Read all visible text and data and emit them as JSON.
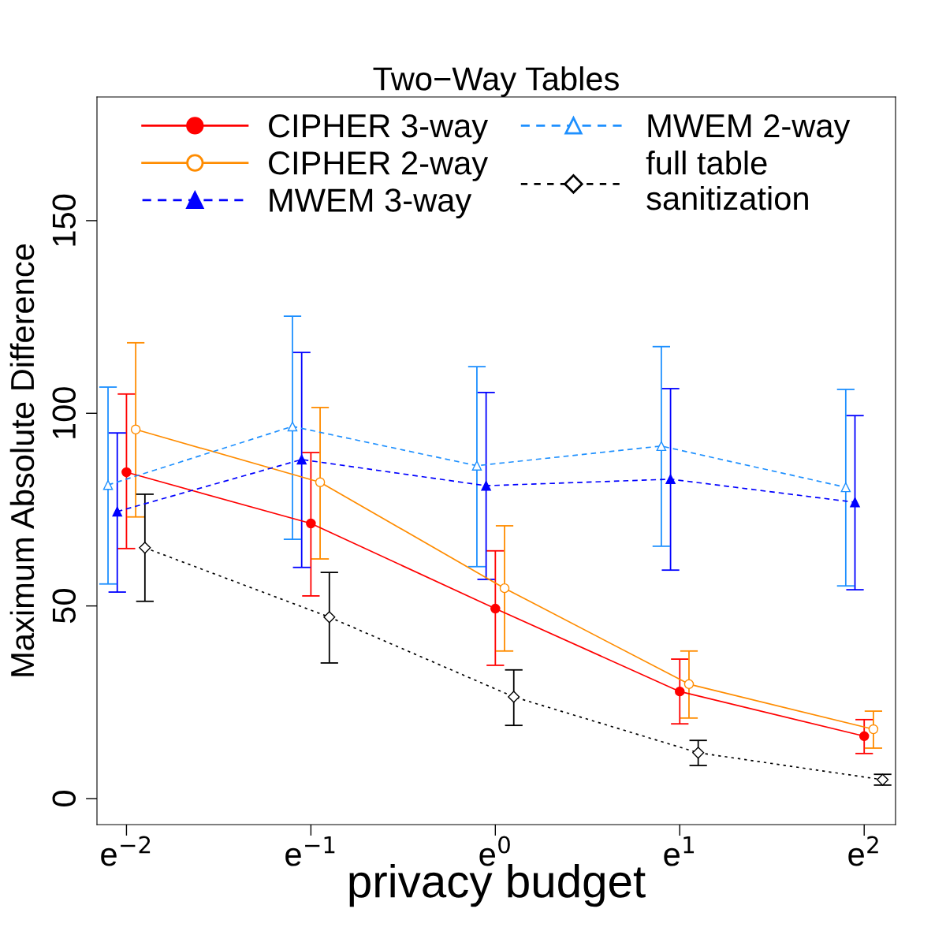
{
  "chart_data": {
    "type": "line",
    "title": "Two−Way Tables",
    "xlabel": "privacy budget",
    "ylabel": "Maximum Absolute Difference",
    "xlim": [
      -2.16,
      2.17
    ],
    "ylim": [
      -6.75,
      182.1
    ],
    "xticks": [
      {
        "value": -2,
        "label": "e$^{−2}$"
      },
      {
        "value": -1,
        "label": "e$^{−1}$"
      },
      {
        "value": 0,
        "label": "e$^{0}$"
      },
      {
        "value": 1,
        "label": "e$^{1}$"
      },
      {
        "value": 2,
        "label": "e$^{2}$"
      }
    ],
    "yticks": [
      0,
      50,
      100,
      150
    ],
    "grid": false,
    "legend": "top",
    "series": [
      {
        "name": "CIPHER 3-way",
        "color": "#ff0000",
        "marker": "circle",
        "line_style": "solid",
        "x": [
          -2,
          -1,
          0,
          1,
          2
        ],
        "values": [
          84.7,
          71.4,
          49.3,
          27.8,
          16.2
        ],
        "errors": [
          [
            64.9,
            105
          ],
          [
            52.6,
            89.8
          ],
          [
            34.6,
            64.3
          ],
          [
            19.4,
            36.2
          ],
          [
            11.7,
            20.5
          ]
        ]
      },
      {
        "name": "CIPHER 2-way",
        "color": "#ff8c00",
        "marker": "circle",
        "line_style": "solid",
        "x": [
          -1.95,
          -0.95,
          0.05,
          1.05,
          2.05
        ],
        "values": [
          95.8,
          82.1,
          54.6,
          29.7,
          18.0
        ],
        "errors": [
          [
            73.1,
            118.3
          ],
          [
            62.2,
            101.5
          ],
          [
            38.3,
            70.8
          ],
          [
            20.9,
            38.3
          ],
          [
            13.1,
            22.7
          ]
        ]
      },
      {
        "name": "MWEM 3-way",
        "color": "#0000ff",
        "marker": "triangle",
        "line_style": "dashed",
        "x": [
          -2.05,
          -1.05,
          -0.05,
          0.95,
          1.95
        ],
        "values": [
          74.5,
          88.0,
          81.2,
          82.9,
          76.9
        ],
        "errors": [
          [
            53.6,
            94.9
          ],
          [
            60.0,
            115.8
          ],
          [
            56.9,
            105.4
          ],
          [
            59.3,
            106.4
          ],
          [
            54.2,
            99.4
          ]
        ]
      },
      {
        "name": "MWEM 2-way",
        "color": "#1e90ff",
        "marker": "triangle",
        "line_style": "dashed",
        "x": [
          -2.1,
          -1.1,
          -0.1,
          0.9,
          1.9
        ],
        "values": [
          81.4,
          96.6,
          86.4,
          91.5,
          80.8
        ],
        "errors": [
          [
            55.7,
            106.8
          ],
          [
            67.3,
            125.2
          ],
          [
            60.2,
            112.1
          ],
          [
            65.5,
            117.3
          ],
          [
            55.2,
            106.2
          ]
        ]
      },
      {
        "name": "full table\nsanitization",
        "color": "#000000",
        "marker": "diamond",
        "line_style": "dotted",
        "x": [
          -1.9,
          -0.9,
          0.1,
          1.1,
          2.1
        ],
        "values": [
          65.1,
          47.1,
          26.4,
          11.9,
          4.9
        ],
        "errors": [
          [
            51.2,
            79.0
          ],
          [
            35.2,
            58.7
          ],
          [
            19.0,
            33.4
          ],
          [
            8.6,
            15.1
          ],
          [
            3.5,
            6.3
          ]
        ]
      }
    ]
  }
}
